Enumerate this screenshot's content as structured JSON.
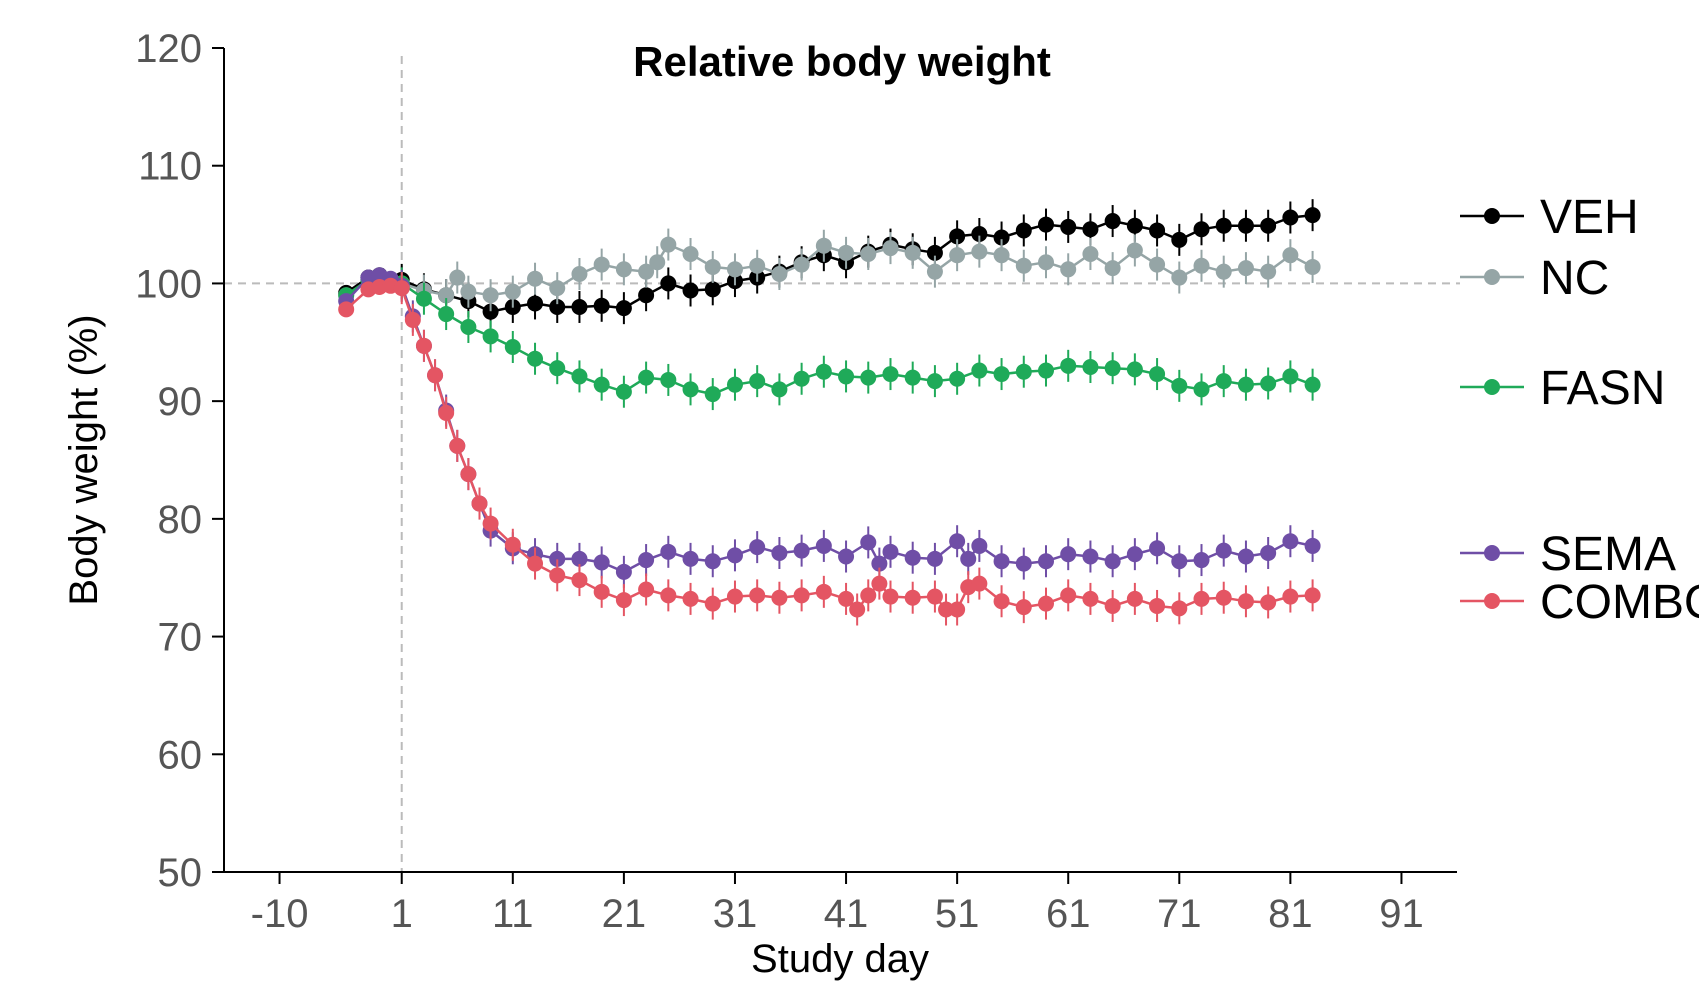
{
  "chart_data": {
    "type": "line",
    "title": "Relative body weight",
    "xlabel": "Study day",
    "ylabel": "Body weight (%)",
    "xlim": [
      -15,
      96
    ],
    "ylim": [
      50,
      120
    ],
    "xticks": [
      -10,
      1,
      11,
      21,
      31,
      41,
      51,
      61,
      71,
      81,
      91
    ],
    "yticks": [
      50,
      60,
      70,
      80,
      90,
      100,
      110,
      120
    ],
    "reference_lines": {
      "y": 100,
      "x": 1
    },
    "grid": false,
    "legend_position": "right",
    "error_bars": true,
    "series": [
      {
        "name": "VEH",
        "color": "#000000",
        "x": [
          -4,
          -2,
          -1,
          0,
          1,
          3,
          5,
          7,
          9,
          11,
          13,
          15,
          17,
          19,
          21,
          23,
          25,
          27,
          29,
          31,
          33,
          35,
          37,
          39,
          41,
          43,
          45,
          47,
          49,
          51,
          53,
          55,
          57,
          59,
          61,
          63,
          65,
          67,
          69,
          71,
          73,
          75,
          77,
          79,
          81,
          83
        ],
        "values": [
          99.2,
          100.5,
          100.7,
          100.3,
          100.3,
          99.5,
          99.0,
          98.5,
          97.6,
          98.0,
          98.3,
          98.0,
          98.0,
          98.1,
          97.9,
          99.0,
          100.0,
          99.4,
          99.5,
          100.2,
          100.5,
          101.0,
          101.8,
          102.4,
          101.8,
          102.7,
          103.3,
          102.9,
          102.6,
          104.0,
          104.2,
          103.9,
          104.5,
          105.0,
          104.8,
          104.6,
          105.3,
          104.9,
          104.5,
          103.7,
          104.6,
          104.9,
          104.9,
          104.9,
          105.6,
          105.8
        ]
      },
      {
        "name": "NC",
        "color": "#95a5a6",
        "x": [
          -4,
          -2,
          -1,
          0,
          1,
          3,
          5,
          6,
          7,
          9,
          11,
          13,
          15,
          17,
          19,
          21,
          23,
          24,
          25,
          27,
          29,
          31,
          33,
          35,
          37,
          39,
          41,
          43,
          45,
          47,
          49,
          51,
          53,
          55,
          57,
          59,
          61,
          63,
          65,
          67,
          69,
          71,
          73,
          75,
          77,
          79,
          81,
          83
        ],
        "values": [
          99.0,
          100.3,
          100.5,
          100.2,
          100.0,
          99.4,
          99.0,
          100.5,
          99.3,
          99.0,
          99.3,
          100.4,
          99.6,
          100.8,
          101.6,
          101.2,
          101.0,
          101.8,
          103.3,
          102.5,
          101.4,
          101.2,
          101.5,
          100.8,
          101.6,
          103.2,
          102.6,
          102.5,
          103.0,
          102.6,
          101.0,
          102.4,
          102.7,
          102.4,
          101.5,
          101.8,
          101.2,
          102.5,
          101.3,
          102.8,
          101.6,
          100.5,
          101.5,
          101.0,
          101.3,
          101.0,
          102.4,
          101.4
        ]
      },
      {
        "name": "FASN",
        "color": "#1faa59",
        "x": [
          -4,
          -2,
          -1,
          0,
          1,
          3,
          5,
          7,
          9,
          11,
          13,
          15,
          17,
          19,
          21,
          23,
          25,
          27,
          29,
          31,
          33,
          35,
          37,
          39,
          41,
          43,
          45,
          47,
          49,
          51,
          53,
          55,
          57,
          59,
          61,
          63,
          65,
          67,
          69,
          71,
          73,
          75,
          77,
          79,
          81,
          83
        ],
        "values": [
          99.0,
          100.3,
          100.5,
          100.3,
          100.0,
          98.7,
          97.4,
          96.3,
          95.5,
          94.6,
          93.6,
          92.8,
          92.1,
          91.4,
          90.8,
          92.0,
          91.8,
          91.0,
          90.6,
          91.4,
          91.7,
          91.0,
          91.9,
          92.5,
          92.1,
          92.0,
          92.3,
          92.0,
          91.7,
          91.9,
          92.6,
          92.3,
          92.5,
          92.6,
          93.0,
          92.9,
          92.8,
          92.7,
          92.3,
          91.3,
          91.0,
          91.7,
          91.4,
          91.5,
          92.1,
          91.4
        ]
      },
      {
        "name": "SEMA",
        "color": "#6f4ea6",
        "x": [
          -4,
          -2,
          -1,
          0,
          1,
          2,
          3,
          4,
          5,
          6,
          7,
          8,
          9,
          11,
          13,
          15,
          17,
          19,
          21,
          23,
          25,
          27,
          29,
          31,
          33,
          35,
          37,
          39,
          41,
          43,
          44,
          45,
          47,
          49,
          51,
          52,
          53,
          55,
          57,
          59,
          61,
          63,
          65,
          67,
          69,
          71,
          73,
          75,
          77,
          79,
          81,
          83
        ],
        "values": [
          98.5,
          100.5,
          100.7,
          100.4,
          99.8,
          97.2,
          94.7,
          92.2,
          89.2,
          86.2,
          83.8,
          81.3,
          79.0,
          77.5,
          77.0,
          76.6,
          76.6,
          76.3,
          75.5,
          76.5,
          77.2,
          76.6,
          76.4,
          76.9,
          77.6,
          77.1,
          77.3,
          77.7,
          76.8,
          78.0,
          76.2,
          77.2,
          76.7,
          76.6,
          78.1,
          76.6,
          77.7,
          76.4,
          76.2,
          76.4,
          77.0,
          76.8,
          76.4,
          77.0,
          77.5,
          76.4,
          76.5,
          77.3,
          76.8,
          77.1,
          78.1,
          77.7
        ]
      },
      {
        "name": "COMBO",
        "color": "#e45563",
        "x": [
          -4,
          -2,
          -1,
          0,
          1,
          2,
          3,
          4,
          5,
          6,
          7,
          8,
          9,
          11,
          13,
          15,
          17,
          19,
          21,
          23,
          25,
          27,
          29,
          31,
          33,
          35,
          37,
          39,
          41,
          42,
          43,
          44,
          45,
          47,
          49,
          50,
          51,
          52,
          53,
          55,
          57,
          59,
          61,
          63,
          65,
          67,
          69,
          71,
          73,
          75,
          77,
          79,
          81,
          83
        ],
        "values": [
          97.8,
          99.5,
          99.7,
          99.8,
          99.6,
          96.9,
          94.7,
          92.2,
          89.0,
          86.2,
          83.8,
          81.3,
          79.6,
          77.8,
          76.2,
          75.2,
          74.8,
          73.8,
          73.1,
          74.0,
          73.5,
          73.2,
          72.8,
          73.4,
          73.5,
          73.3,
          73.5,
          73.8,
          73.2,
          72.3,
          73.5,
          74.5,
          73.4,
          73.3,
          73.4,
          72.3,
          72.3,
          74.2,
          74.5,
          73.0,
          72.5,
          72.8,
          73.5,
          73.2,
          72.6,
          73.2,
          72.6,
          72.4,
          73.2,
          73.3,
          73.0,
          72.9,
          73.4,
          73.5
        ]
      }
    ]
  }
}
